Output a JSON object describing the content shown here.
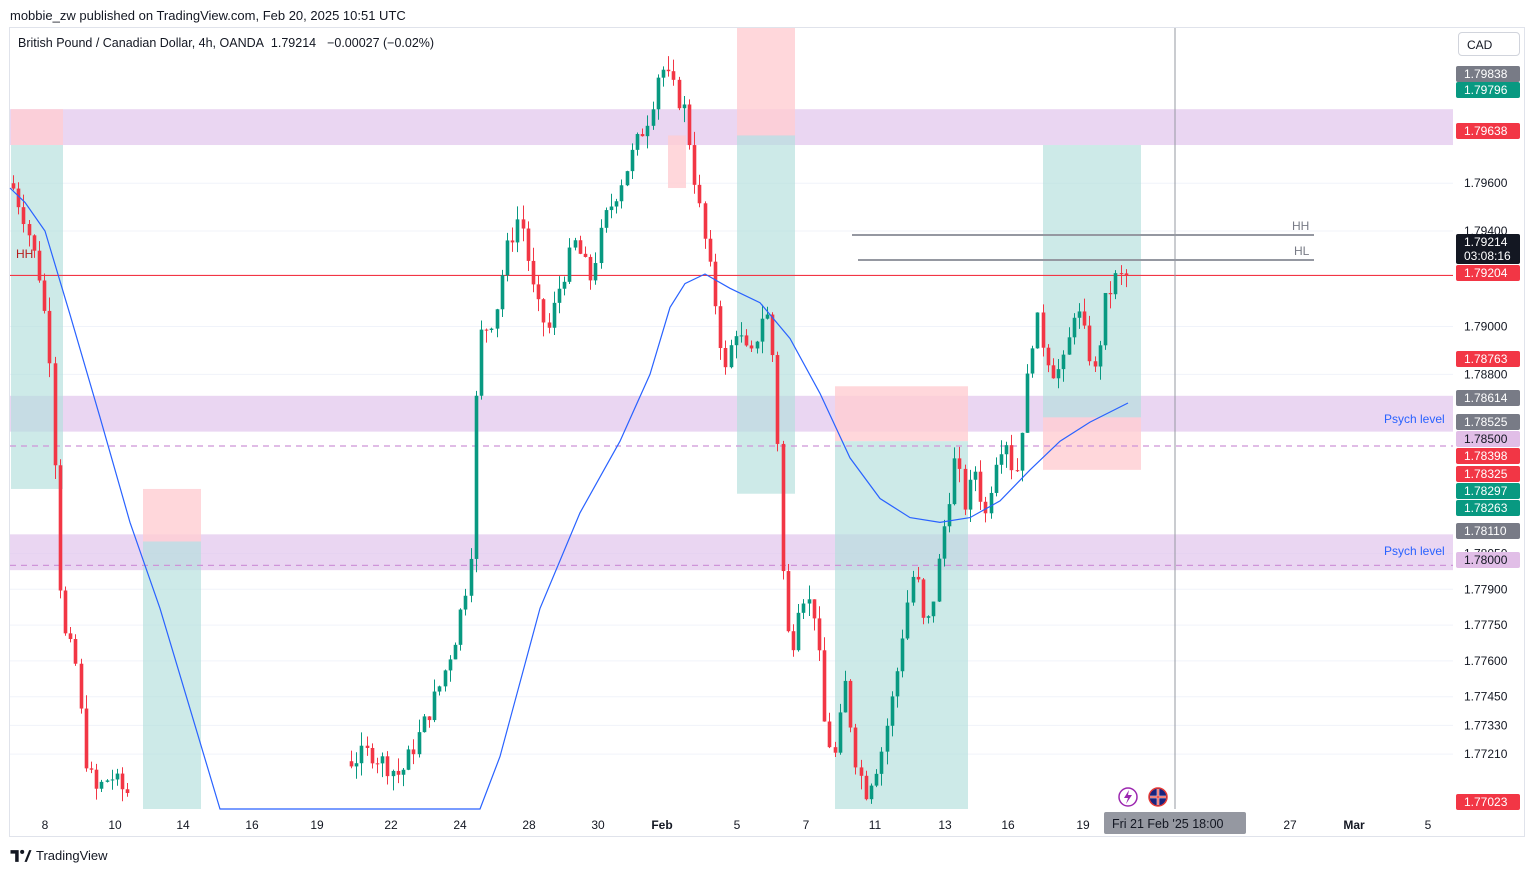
{
  "header": {
    "publisher_line": "mobbie_zw published on TradingView.com, Feb 20, 2025 10:51 UTC"
  },
  "legend": {
    "symbol": "British Pound / Canadian Dollar, 4h, OANDA",
    "price": "1.79214",
    "change": "−0.00027 (−0.02%)"
  },
  "currency_button": "CAD",
  "footer": {
    "brand": "TradingView"
  },
  "colors": {
    "bull": "#089981",
    "bear": "#f23645",
    "ma": "#2962ff",
    "zone": "#e1c4ec",
    "long_fill": "#b2dfdb",
    "short_fill": "#ffcdd2",
    "price_line": "#f23645",
    "psych_line": "#ce93d8",
    "axis_text": "#131722"
  },
  "chart_data": {
    "type": "candlestick",
    "symbol": "GBPCAD",
    "timeframe": "4h",
    "ylim": [
      1.7698,
      1.8025
    ],
    "x_ticks": [
      "8",
      "10",
      "14",
      "16",
      "19",
      "22",
      "24",
      "28",
      "30",
      "Feb",
      "5",
      "7",
      "11",
      "13",
      "16",
      "19",
      "27",
      "Mar",
      "5"
    ],
    "y_ticks": [
      "1.79600",
      "1.79400",
      "1.79000",
      "1.78800",
      "1.78050",
      "1.77900",
      "1.77750",
      "1.77600",
      "1.77450",
      "1.77330",
      "1.77210"
    ],
    "price_labels": [
      {
        "text": "1.79838",
        "style": "gray"
      },
      {
        "text": "1.79796",
        "style": "green"
      },
      {
        "text": "1.79638",
        "style": "red"
      },
      {
        "text": "1.79214",
        "style": "dark",
        "sub": "03:08:16"
      },
      {
        "text": "1.79204",
        "style": "red"
      },
      {
        "text": "1.78763",
        "style": "red"
      },
      {
        "text": "1.78614",
        "style": "gray"
      },
      {
        "text": "1.78525",
        "style": "gray"
      },
      {
        "text": "1.78500",
        "style": "purple"
      },
      {
        "text": "1.78398",
        "style": "red"
      },
      {
        "text": "1.78325",
        "style": "red"
      },
      {
        "text": "1.78297",
        "style": "green"
      },
      {
        "text": "1.78263",
        "style": "green"
      },
      {
        "text": "1.78110",
        "style": "gray"
      },
      {
        "text": "1.78000",
        "style": "purple"
      },
      {
        "text": "1.77023",
        "style": "red"
      }
    ],
    "crosshair_label": "Fri 21 Feb '25   18:00",
    "annotations": [
      "HH",
      "HL",
      "HH",
      "Psych level",
      "Psych level"
    ],
    "current_price": 1.79214,
    "psych_levels": [
      1.785,
      1.78
    ],
    "zones": [
      [
        1.7976,
        1.7991
      ],
      [
        1.7856,
        1.7871
      ],
      [
        1.7798,
        1.7813
      ]
    ],
    "ma_label": "Moving average"
  }
}
